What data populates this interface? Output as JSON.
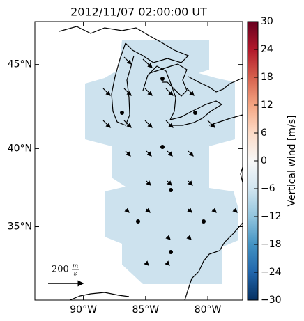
{
  "chart_data": {
    "type": "map",
    "title": "2012/11/07 02:00:00 UT",
    "xlim": [
      -93.9,
      -77.2
    ],
    "ylim": [
      30.0,
      47.4
    ],
    "xticks": [
      {
        "value": -90,
        "label": "90°W"
      },
      {
        "value": -85,
        "label": "85°W"
      },
      {
        "value": -80,
        "label": "80°W"
      }
    ],
    "yticks": [
      {
        "value": 35,
        "label": "35°N"
      },
      {
        "value": 40,
        "label": "40°N"
      },
      {
        "value": 45,
        "label": "45°N"
      }
    ],
    "colorbar": {
      "label": "Vertical wind [m/s]",
      "lim": [
        -30,
        30
      ],
      "ticks": [
        {
          "value": -30,
          "label": "−30"
        },
        {
          "value": -24,
          "label": "−24"
        },
        {
          "value": -18,
          "label": "−18"
        },
        {
          "value": -12,
          "label": "−12"
        },
        {
          "value": -6,
          "label": "−6"
        },
        0,
        6,
        12,
        18,
        24,
        30
      ]
    },
    "scale_arrow": {
      "value": 200,
      "unit_numerator": "m",
      "unit_denominator": "s"
    }
  }
}
